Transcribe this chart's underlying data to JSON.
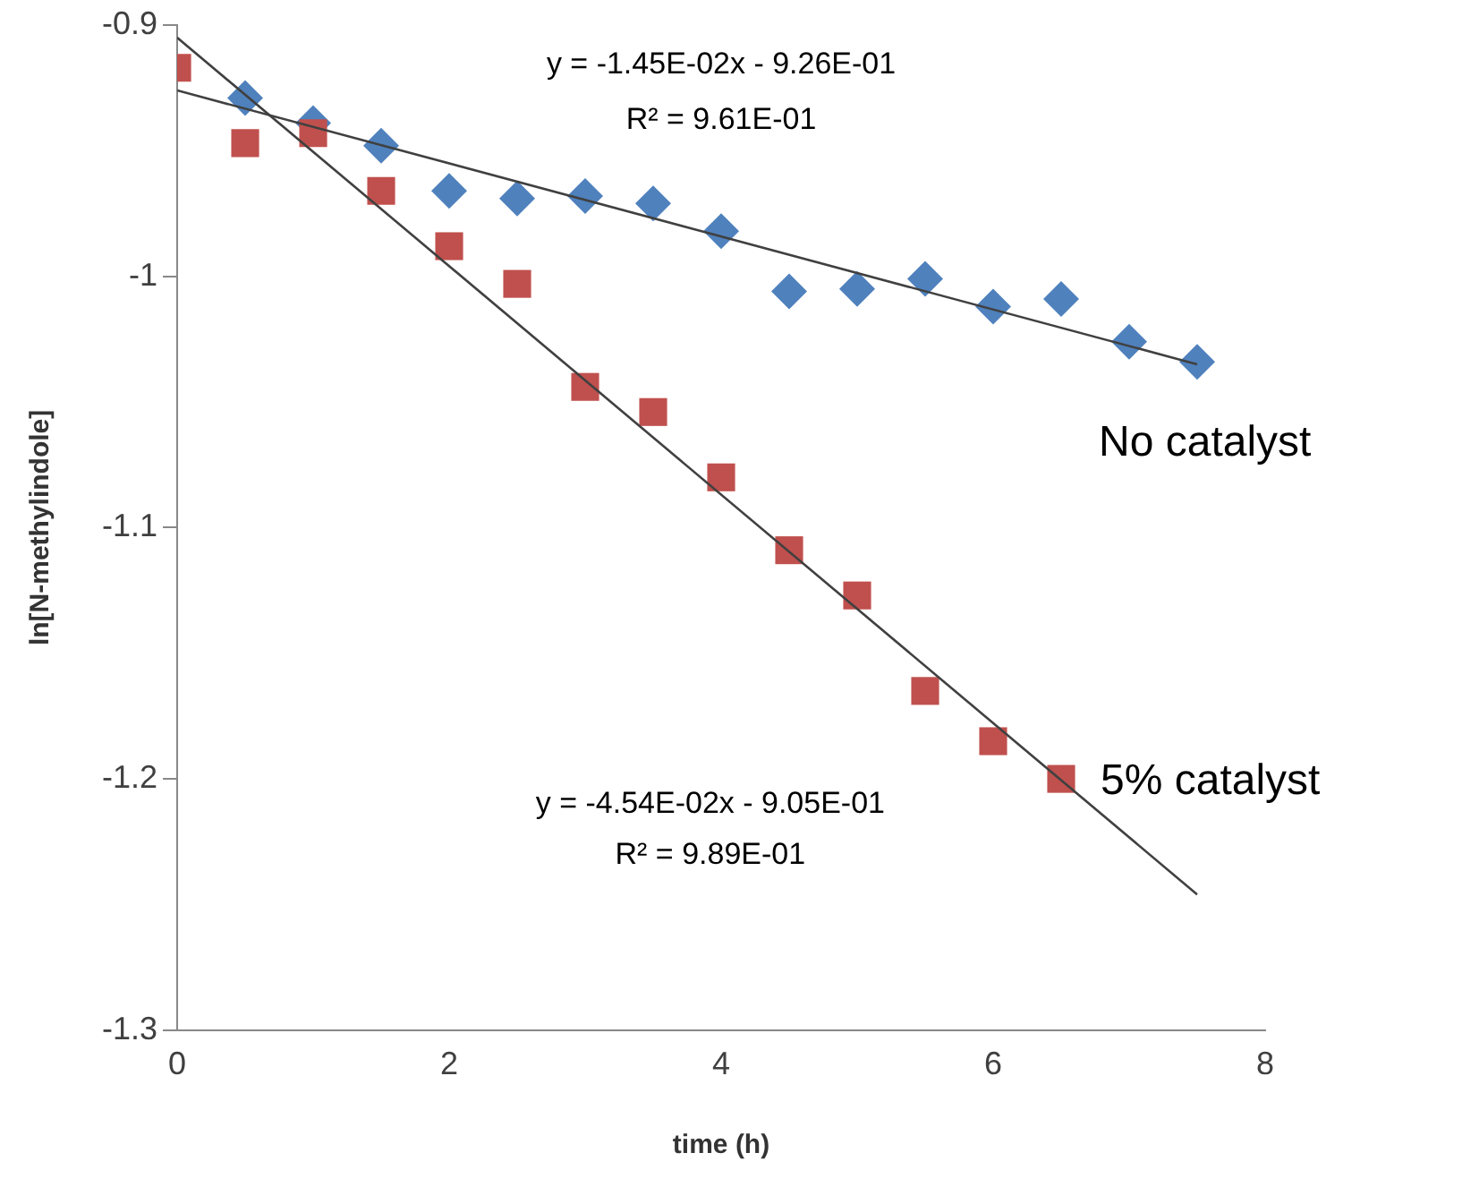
{
  "chart_data": {
    "type": "scatter",
    "xlabel": "time (h)",
    "ylabel": "ln[N-methylindole]",
    "xlim": [
      0,
      8
    ],
    "xticks": [
      0,
      2,
      4,
      6,
      8
    ],
    "ylim": [
      -1.3,
      -0.9
    ],
    "yticks": [
      -1.3,
      -1.2,
      -1.1,
      -1,
      -0.9
    ],
    "grid": false,
    "legend": false,
    "series": [
      {
        "name": "No catalyst",
        "color": "#4f81bd",
        "marker": "diamond",
        "x": [
          0.5,
          1,
          1.5,
          2,
          2.5,
          3,
          3.5,
          4,
          4.5,
          5,
          5.5,
          6,
          6.5,
          7,
          7.5
        ],
        "values": [
          -0.929,
          -0.939,
          -0.948,
          -0.966,
          -0.969,
          -0.968,
          -0.971,
          -0.982,
          -1.006,
          -1.005,
          -1.001,
          -1.012,
          -1.009,
          -1.026,
          -1.034
        ]
      },
      {
        "name": "5% catalyst",
        "color": "#c0504d",
        "marker": "square",
        "x": [
          0,
          0.5,
          1,
          1.5,
          2,
          2.5,
          3,
          3.5,
          4,
          4.5,
          5,
          5.5,
          6,
          6.5
        ],
        "values": [
          -0.917,
          -0.947,
          -0.943,
          -0.966,
          -0.988,
          -1.003,
          -1.044,
          -1.054,
          -1.08,
          -1.109,
          -1.127,
          -1.165,
          -1.185,
          -1.2
        ]
      },
      {
        "type": "line",
        "color": "#404040",
        "marker": "none",
        "x": [
          0,
          7.5
        ],
        "values": [
          -0.926,
          -1.035
        ]
      },
      {
        "type": "line",
        "color": "#404040",
        "marker": "none",
        "x": [
          0,
          7.5
        ],
        "values": [
          -0.905,
          -1.246
        ]
      }
    ],
    "annotations": [
      "y = -1.45E-02x - 9.26E-01",
      "R² = 9.61E-01",
      "y = -4.54E-02x - 9.05E-01",
      "R² = 9.89E-01"
    ]
  }
}
